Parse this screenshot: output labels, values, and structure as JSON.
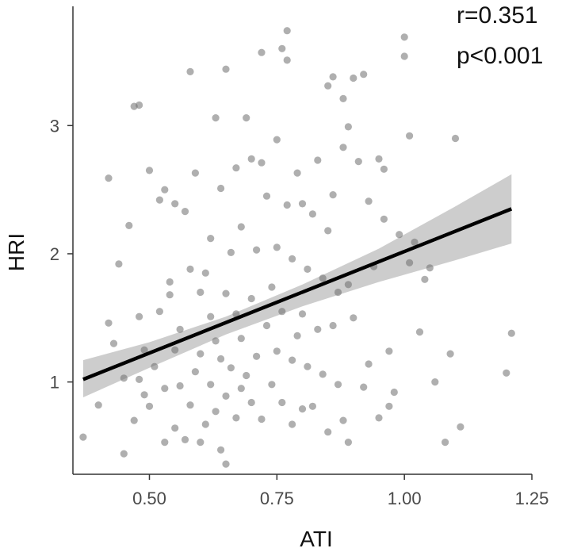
{
  "colors": {
    "background": "#ffffff",
    "axis": "#333333",
    "point": "#6e6e6e",
    "fit_line": "#000000",
    "confidence_band": "#c8c8c8"
  },
  "chart_data": {
    "type": "scatter",
    "title": "",
    "xlabel": "ATI",
    "ylabel": "HRI",
    "xlim": [
      0.35,
      1.25
    ],
    "ylim": [
      0.28,
      3.93
    ],
    "xticks": [
      0.5,
      0.75,
      1.0,
      1.25
    ],
    "xtick_labels": [
      "0.50",
      "0.75",
      "1.00",
      "1.25"
    ],
    "yticks": [
      1,
      2,
      3
    ],
    "ytick_labels": [
      "1",
      "2",
      "3"
    ],
    "grid": false,
    "legend": "none",
    "annotations": [
      "r=0.351",
      "p<0.001"
    ],
    "fit_line": {
      "x": [
        0.37,
        1.21
      ],
      "y": [
        1.02,
        2.35
      ]
    },
    "confidence_band": {
      "x": [
        0.37,
        0.5,
        0.65,
        0.8,
        0.95,
        1.1,
        1.21
      ],
      "lower": [
        0.88,
        1.11,
        1.37,
        1.59,
        1.78,
        1.95,
        2.08
      ],
      "upper": [
        1.17,
        1.31,
        1.51,
        1.76,
        2.04,
        2.37,
        2.62
      ]
    },
    "points": [
      [
        0.37,
        0.57
      ],
      [
        0.4,
        0.82
      ],
      [
        0.42,
        1.46
      ],
      [
        0.42,
        2.59
      ],
      [
        0.43,
        1.3
      ],
      [
        0.44,
        1.92
      ],
      [
        0.45,
        0.44
      ],
      [
        0.45,
        1.03
      ],
      [
        0.46,
        2.22
      ],
      [
        0.47,
        3.15
      ],
      [
        0.47,
        0.7
      ],
      [
        0.48,
        3.16
      ],
      [
        0.48,
        1.02
      ],
      [
        0.48,
        1.51
      ],
      [
        0.49,
        0.9
      ],
      [
        0.49,
        1.25
      ],
      [
        0.5,
        2.65
      ],
      [
        0.5,
        0.81
      ],
      [
        0.51,
        1.12
      ],
      [
        0.52,
        1.55
      ],
      [
        0.52,
        2.42
      ],
      [
        0.53,
        0.53
      ],
      [
        0.53,
        2.5
      ],
      [
        0.53,
        0.95
      ],
      [
        0.54,
        1.68
      ],
      [
        0.54,
        1.78
      ],
      [
        0.55,
        1.25
      ],
      [
        0.55,
        0.64
      ],
      [
        0.55,
        2.39
      ],
      [
        0.56,
        0.97
      ],
      [
        0.56,
        1.41
      ],
      [
        0.57,
        2.33
      ],
      [
        0.57,
        0.55
      ],
      [
        0.58,
        1.88
      ],
      [
        0.58,
        3.42
      ],
      [
        0.58,
        0.82
      ],
      [
        0.59,
        1.08
      ],
      [
        0.59,
        2.63
      ],
      [
        0.6,
        0.53
      ],
      [
        0.6,
        1.22
      ],
      [
        0.6,
        1.7
      ],
      [
        0.61,
        1.85
      ],
      [
        0.61,
        0.67
      ],
      [
        0.62,
        2.12
      ],
      [
        0.62,
        0.98
      ],
      [
        0.62,
        1.51
      ],
      [
        0.63,
        3.06
      ],
      [
        0.63,
        0.77
      ],
      [
        0.63,
        1.32
      ],
      [
        0.64,
        2.51
      ],
      [
        0.64,
        0.47
      ],
      [
        0.64,
        1.18
      ],
      [
        0.65,
        3.44
      ],
      [
        0.65,
        0.36
      ],
      [
        0.65,
        0.89
      ],
      [
        0.65,
        1.69
      ],
      [
        0.66,
        2.01
      ],
      [
        0.66,
        1.11
      ],
      [
        0.67,
        2.67
      ],
      [
        0.67,
        0.72
      ],
      [
        0.67,
        1.53
      ],
      [
        0.68,
        2.21
      ],
      [
        0.68,
        0.95
      ],
      [
        0.68,
        1.34
      ],
      [
        0.69,
        3.06
      ],
      [
        0.69,
        1.05
      ],
      [
        0.7,
        2.74
      ],
      [
        0.7,
        1.65
      ],
      [
        0.7,
        0.84
      ],
      [
        0.71,
        2.03
      ],
      [
        0.71,
        1.2
      ],
      [
        0.72,
        3.57
      ],
      [
        0.72,
        2.71
      ],
      [
        0.72,
        0.71
      ],
      [
        0.73,
        1.44
      ],
      [
        0.73,
        2.45
      ],
      [
        0.74,
        0.98
      ],
      [
        0.74,
        1.74
      ],
      [
        0.75,
        2.89
      ],
      [
        0.75,
        2.05
      ],
      [
        0.75,
        1.24
      ],
      [
        0.76,
        0.84
      ],
      [
        0.76,
        1.55
      ],
      [
        0.76,
        3.6
      ],
      [
        0.77,
        3.51
      ],
      [
        0.77,
        2.38
      ],
      [
        0.77,
        3.74
      ],
      [
        0.78,
        1.17
      ],
      [
        0.78,
        1.96
      ],
      [
        0.78,
        0.67
      ],
      [
        0.79,
        1.36
      ],
      [
        0.79,
        2.63
      ],
      [
        0.8,
        1.53
      ],
      [
        0.8,
        2.39
      ],
      [
        0.8,
        0.79
      ],
      [
        0.81,
        1.88
      ],
      [
        0.81,
        1.12
      ],
      [
        0.82,
        2.31
      ],
      [
        0.82,
        0.81
      ],
      [
        0.83,
        1.41
      ],
      [
        0.83,
        2.73
      ],
      [
        0.84,
        1.06
      ],
      [
        0.84,
        1.81
      ],
      [
        0.85,
        0.61
      ],
      [
        0.85,
        3.31
      ],
      [
        0.85,
        2.18
      ],
      [
        0.86,
        1.44
      ],
      [
        0.86,
        2.46
      ],
      [
        0.86,
        3.38
      ],
      [
        0.87,
        0.98
      ],
      [
        0.87,
        1.7
      ],
      [
        0.88,
        3.21
      ],
      [
        0.88,
        0.7
      ],
      [
        0.88,
        2.83
      ],
      [
        0.89,
        1.76
      ],
      [
        0.89,
        2.99
      ],
      [
        0.89,
        0.53
      ],
      [
        0.9,
        3.37
      ],
      [
        0.9,
        1.5
      ],
      [
        0.91,
        2.72
      ],
      [
        0.92,
        0.96
      ],
      [
        0.92,
        3.4
      ],
      [
        0.93,
        2.41
      ],
      [
        0.93,
        1.14
      ],
      [
        0.94,
        1.9
      ],
      [
        0.95,
        2.74
      ],
      [
        0.95,
        0.72
      ],
      [
        0.96,
        2.66
      ],
      [
        0.96,
        2.27
      ],
      [
        0.97,
        1.24
      ],
      [
        0.97,
        0.81
      ],
      [
        0.98,
        0.92
      ],
      [
        0.99,
        2.15
      ],
      [
        1.0,
        3.69
      ],
      [
        1.0,
        3.54
      ],
      [
        1.01,
        2.92
      ],
      [
        1.01,
        1.93
      ],
      [
        1.02,
        2.09
      ],
      [
        1.03,
        1.39
      ],
      [
        1.04,
        1.8
      ],
      [
        1.05,
        1.89
      ],
      [
        1.06,
        1.0
      ],
      [
        1.08,
        0.53
      ],
      [
        1.09,
        1.22
      ],
      [
        1.1,
        2.9
      ],
      [
        1.11,
        0.65
      ],
      [
        1.2,
        1.07
      ],
      [
        1.21,
        1.38
      ]
    ]
  }
}
